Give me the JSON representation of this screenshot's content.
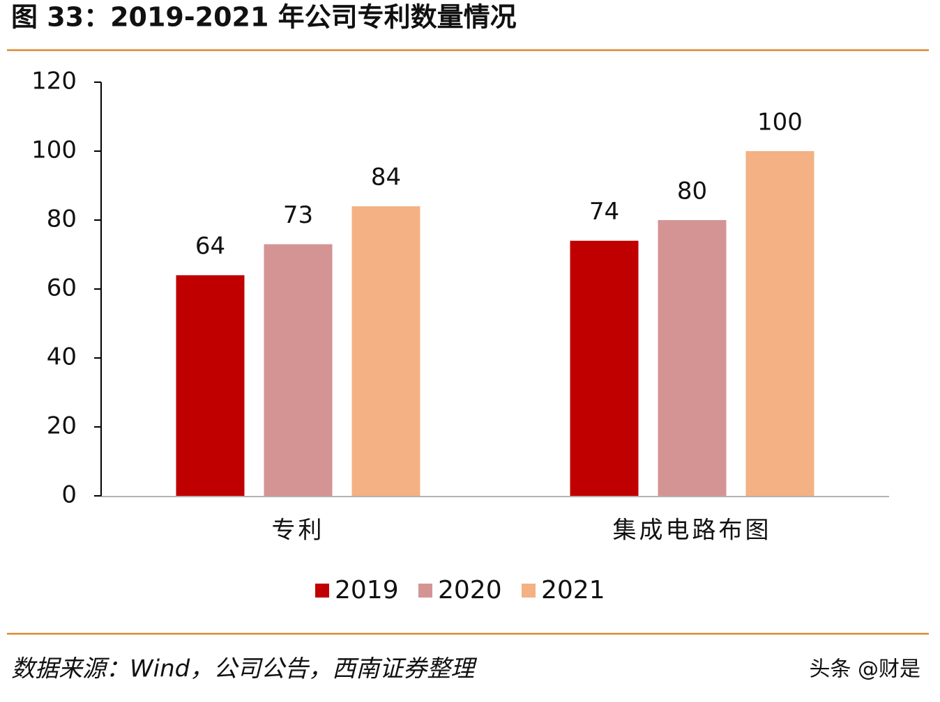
{
  "chart_data": {
    "type": "bar",
    "title": "图 33：2019-2021 年公司专利数量情况",
    "categories": [
      "专利",
      "集成电路布图"
    ],
    "series": [
      {
        "name": "2019",
        "color": "#c00000",
        "values": [
          64,
          74
        ]
      },
      {
        "name": "2020",
        "color": "#d49494",
        "values": [
          73,
          80
        ]
      },
      {
        "name": "2021",
        "color": "#f4b183",
        "values": [
          84,
          100
        ]
      }
    ],
    "ylim": [
      0,
      120
    ],
    "yticks": [
      0,
      20,
      40,
      60,
      80,
      100,
      120
    ],
    "legend": "bottom",
    "source": "数据来源：Wind，公司公告，西南证券整理",
    "watermark": "头条 @财是"
  }
}
